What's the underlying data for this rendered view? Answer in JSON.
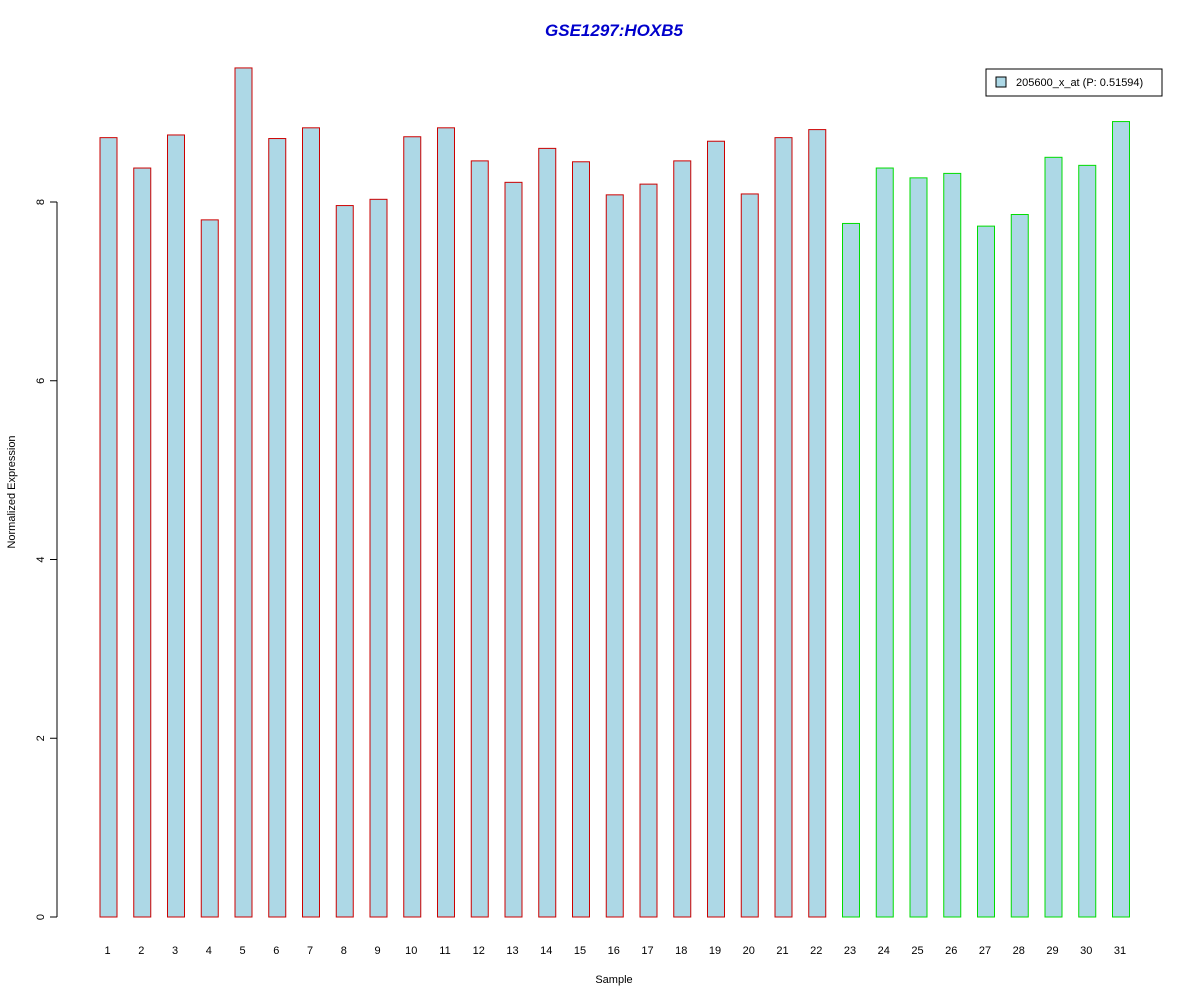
{
  "chart_data": {
    "type": "bar",
    "title": "GSE1297:HOXB5",
    "xlabel": "Sample",
    "ylabel": "Normalized Expression",
    "categories": [
      "1",
      "2",
      "3",
      "4",
      "5",
      "6",
      "7",
      "8",
      "9",
      "10",
      "11",
      "12",
      "13",
      "14",
      "15",
      "16",
      "17",
      "18",
      "19",
      "20",
      "21",
      "22",
      "23",
      "24",
      "25",
      "26",
      "27",
      "28",
      "29",
      "30",
      "31"
    ],
    "series": [
      {
        "name": "205600_x_at (P: 0.51594)",
        "values": [
          8.72,
          8.38,
          8.75,
          7.8,
          9.5,
          8.71,
          8.83,
          7.96,
          8.03,
          8.73,
          8.83,
          8.46,
          8.22,
          8.6,
          8.45,
          8.08,
          8.2,
          8.46,
          8.68,
          8.09,
          8.72,
          8.81,
          7.76,
          8.38,
          8.27,
          8.32,
          7.73,
          7.86,
          8.5,
          8.41,
          8.9
        ]
      }
    ],
    "group_borders": [
      "#cc0000",
      "#cc0000",
      "#cc0000",
      "#cc0000",
      "#cc0000",
      "#cc0000",
      "#cc0000",
      "#cc0000",
      "#cc0000",
      "#cc0000",
      "#cc0000",
      "#cc0000",
      "#cc0000",
      "#cc0000",
      "#cc0000",
      "#cc0000",
      "#cc0000",
      "#cc0000",
      "#cc0000",
      "#cc0000",
      "#cc0000",
      "#cc0000",
      "#00dd00",
      "#00dd00",
      "#00dd00",
      "#00dd00",
      "#00dd00",
      "#00dd00",
      "#00dd00",
      "#00dd00",
      "#00dd00"
    ],
    "ylim": [
      0,
      9.6
    ],
    "yticks": [
      0,
      2,
      4,
      6,
      8
    ],
    "ytick_labels": [
      "0",
      "2",
      "4",
      "6",
      "8"
    ],
    "legend": {
      "position": "top-right",
      "label": "205600_x_at (P: 0.51594)"
    },
    "grid": false,
    "colors": {
      "bar_fill": "#add8e6",
      "title": "#0000cc",
      "axis": "#000000"
    }
  }
}
